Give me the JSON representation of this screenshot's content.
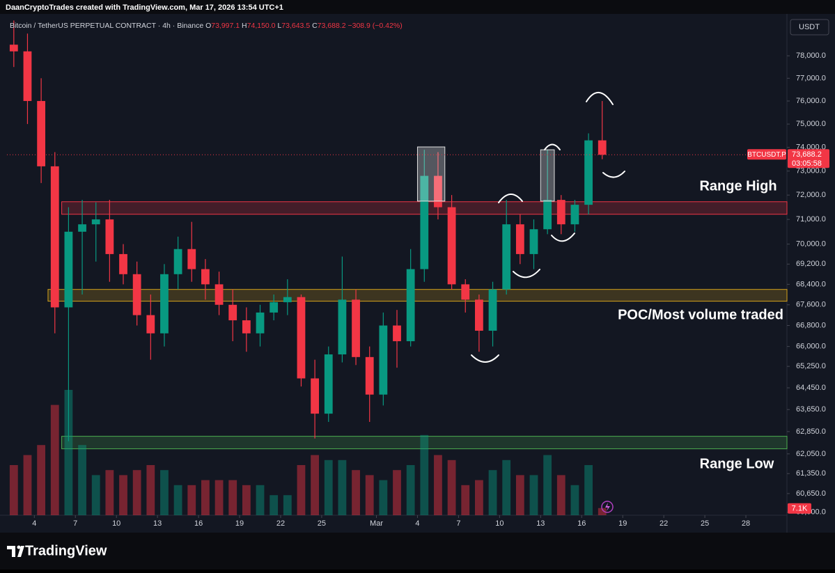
{
  "header": {
    "credit": "DaanCryptoTrades created with TradingView.com, Mar 17, 2026 13:54 UTC+1"
  },
  "chart_data": {
    "type": "candlestick",
    "symbol": "Bitcoin / TetherUS PERPETUAL CONTRACT · 4h · Binance",
    "legend": [
      {
        "key": "O",
        "value": "73,997.1"
      },
      {
        "key": "H",
        "value": "74,150.0"
      },
      {
        "key": "L",
        "value": "73,643.5"
      },
      {
        "key": "C",
        "value": "73,688.2"
      }
    ],
    "change": "−308.9 (−0.42%)",
    "currency": "USDT",
    "ticker": "BTCUSDT.P",
    "last_price_label": "73,688.2",
    "countdown": "03:05:58",
    "x": [
      "2026-02-02",
      "2026-02-03",
      "2026-02-04",
      "2026-02-05",
      "2026-02-06",
      "2026-02-07",
      "2026-02-08",
      "2026-02-09",
      "2026-02-10",
      "2026-02-11",
      "2026-02-12",
      "2026-02-13",
      "2026-02-14",
      "2026-02-15",
      "2026-02-16",
      "2026-02-17",
      "2026-02-18",
      "2026-02-19",
      "2026-02-20",
      "2026-02-21",
      "2026-02-22",
      "2026-02-23",
      "2026-02-24",
      "2026-02-25",
      "2026-02-26",
      "2026-02-27",
      "2026-02-28",
      "2026-03-01",
      "2026-03-02",
      "2026-03-03",
      "2026-03-04",
      "2026-03-05",
      "2026-03-06",
      "2026-03-07",
      "2026-03-08",
      "2026-03-09",
      "2026-03-10",
      "2026-03-11",
      "2026-03-12",
      "2026-03-13",
      "2026-03-14",
      "2026-03-15",
      "2026-03-16",
      "2026-03-17"
    ],
    "open": [
      78500,
      78200,
      76000,
      73200,
      67500,
      70500,
      70800,
      71000,
      69600,
      68800,
      67200,
      66500,
      68800,
      69800,
      69000,
      68400,
      67600,
      67000,
      66500,
      67300,
      67700,
      67900,
      64800,
      63500,
      65700,
      67800,
      65600,
      64200,
      66800,
      66200,
      69000,
      72800,
      71500,
      68400,
      67800,
      66600,
      68200,
      70800,
      69600,
      70600,
      71800,
      70800,
      71600,
      74300
    ],
    "high": [
      79600,
      79000,
      77000,
      73800,
      71500,
      71800,
      71700,
      71800,
      70000,
      69300,
      68000,
      69200,
      70300,
      70900,
      69400,
      68900,
      68200,
      67500,
      67600,
      68000,
      68600,
      68000,
      65500,
      66000,
      69500,
      68200,
      66000,
      67300,
      67400,
      69800,
      73900,
      73800,
      72000,
      68600,
      68000,
      68500,
      71800,
      71200,
      71000,
      73900,
      72000,
      71800,
      74600,
      76000
    ],
    "low": [
      77500,
      75000,
      72500,
      66500,
      62500,
      68000,
      69300,
      68500,
      68400,
      66800,
      65500,
      66000,
      68200,
      68500,
      67800,
      67200,
      66200,
      65800,
      66000,
      67000,
      67200,
      64500,
      62600,
      63200,
      65400,
      65300,
      63200,
      63800,
      65200,
      66000,
      68500,
      71000,
      68200,
      67300,
      65800,
      66000,
      68000,
      69200,
      69000,
      70400,
      70400,
      70500,
      71200,
      73500
    ],
    "close": [
      78200,
      76000,
      73200,
      67500,
      70500,
      70800,
      71000,
      69600,
      68800,
      67200,
      66500,
      68800,
      69800,
      69000,
      68400,
      67600,
      67000,
      66500,
      67300,
      67700,
      67900,
      64800,
      63500,
      65700,
      67800,
      65600,
      64200,
      66800,
      66200,
      69000,
      72800,
      71500,
      68400,
      67800,
      66600,
      68200,
      70800,
      69600,
      70600,
      71800,
      70800,
      71600,
      74300,
      73688.2
    ],
    "volume": [
      50000,
      60000,
      70000,
      110000,
      125000,
      70000,
      40000,
      45000,
      40000,
      45000,
      50000,
      45000,
      30000,
      30000,
      35000,
      35000,
      35000,
      30000,
      30000,
      20000,
      20000,
      50000,
      60000,
      55000,
      55000,
      45000,
      40000,
      35000,
      45000,
      50000,
      80000,
      60000,
      55000,
      30000,
      35000,
      45000,
      55000,
      40000,
      40000,
      60000,
      40000,
      30000,
      50000,
      7100
    ],
    "last_volume": {
      "value": 7100,
      "label": "7.1K"
    },
    "up_color": "#089981",
    "down_color": "#f23645",
    "log_scale": true,
    "ylim": [
      59900,
      79900
    ],
    "yticks": [
      {
        "value": 78000,
        "label": "78,000.0"
      },
      {
        "value": 77000,
        "label": "77,000.0"
      },
      {
        "value": 76000,
        "label": "76,000.0"
      },
      {
        "value": 75000,
        "label": "75,000.0"
      },
      {
        "value": 74000,
        "label": "74,000.0"
      },
      {
        "value": 73000,
        "label": "73,000.0"
      },
      {
        "value": 72000,
        "label": "72,000.0"
      },
      {
        "value": 71000,
        "label": "71,000.0"
      },
      {
        "value": 70000,
        "label": "70,000.0"
      },
      {
        "value": 69200,
        "label": "69,200.0"
      },
      {
        "value": 68400,
        "label": "68,400.0"
      },
      {
        "value": 67600,
        "label": "67,600.0"
      },
      {
        "value": 66800,
        "label": "66,800.0"
      },
      {
        "value": 66000,
        "label": "66,000.0"
      },
      {
        "value": 65250,
        "label": "65,250.0"
      },
      {
        "value": 64450,
        "label": "64,450.0"
      },
      {
        "value": 63650,
        "label": "63,650.0"
      },
      {
        "value": 62850,
        "label": "62,850.0"
      },
      {
        "value": 62050,
        "label": "62,050.0"
      },
      {
        "value": 61350,
        "label": "61,350.0"
      },
      {
        "value": 60650,
        "label": "60,650.0"
      },
      {
        "value": 60000,
        "label": "60,000.0"
      }
    ],
    "y2lim": [
      0,
      500000
    ],
    "xlim": [
      "2026-02-02",
      "2026-03-31"
    ],
    "xticks": [
      {
        "value": "2026-02-04",
        "label": "4"
      },
      {
        "value": "2026-02-07",
        "label": "7"
      },
      {
        "value": "2026-02-10",
        "label": "10"
      },
      {
        "value": "2026-02-13",
        "label": "13"
      },
      {
        "value": "2026-02-16",
        "label": "16"
      },
      {
        "value": "2026-02-19",
        "label": "19"
      },
      {
        "value": "2026-02-22",
        "label": "22"
      },
      {
        "value": "2026-02-25",
        "label": "25"
      },
      {
        "value": "2026-03-01",
        "label": "Mar"
      },
      {
        "value": "2026-03-04",
        "label": "4"
      },
      {
        "value": "2026-03-07",
        "label": "7"
      },
      {
        "value": "2026-03-10",
        "label": "10"
      },
      {
        "value": "2026-03-13",
        "label": "13"
      },
      {
        "value": "2026-03-16",
        "label": "16"
      },
      {
        "value": "2026-03-19",
        "label": "19"
      },
      {
        "value": "2026-03-22",
        "label": "22"
      },
      {
        "value": "2026-03-25",
        "label": "25"
      },
      {
        "value": "2026-03-28",
        "label": "28"
      }
    ],
    "zones": [
      {
        "label": "Range High",
        "from": "2026-02-06",
        "low": 71210,
        "high": 71725,
        "color": "#f23645"
      },
      {
        "label": "POC/Most volume traded",
        "from": "2026-02-05",
        "low": 67740,
        "high": 68200,
        "color": "#d4a21c"
      },
      {
        "label": "Range Low",
        "from": "2026-02-06",
        "low": 62230,
        "high": 62680,
        "color": "#4caf50"
      }
    ],
    "highlights": [
      {
        "from": "2026-03-04",
        "to": "2026-03-06",
        "low": 71750,
        "high": 74020
      },
      {
        "from": "2026-03-13",
        "to": "2026-03-14",
        "low": 71750,
        "high": 73900
      }
    ]
  },
  "footer": {
    "brand": "TradingView"
  }
}
